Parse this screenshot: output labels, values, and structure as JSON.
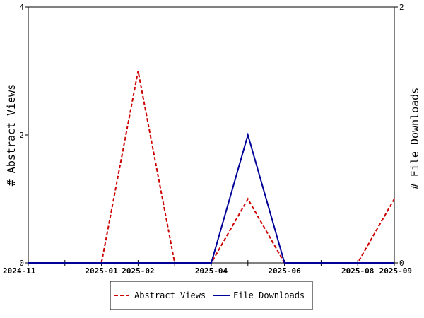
{
  "chart_data": {
    "type": "line",
    "x": [
      "2024-11",
      "2024-12",
      "2025-01",
      "2025-02",
      "2025-03",
      "2025-04",
      "2025-05",
      "2025-06",
      "2025-07",
      "2025-08",
      "2025-09"
    ],
    "x_tick_labels": [
      "2024-11",
      "2025-01",
      "2025-02",
      "2025-04",
      "2025-06",
      "2025-08",
      "2025-09"
    ],
    "y_left": {
      "label": "# Abstract Views",
      "ylim": [
        0,
        4
      ],
      "ticks": [
        0,
        2,
        4
      ]
    },
    "y_right": {
      "label": "# File Downloads",
      "ylim": [
        0,
        2
      ],
      "ticks": [
        0,
        2
      ]
    },
    "series": [
      {
        "name": "Abstract Views",
        "axis": "left",
        "color": "#cc0000",
        "style": "dashed",
        "values": [
          0,
          0,
          0,
          3,
          0,
          0,
          1,
          0,
          0,
          0,
          1
        ]
      },
      {
        "name": "File Downloads",
        "axis": "right",
        "color": "#000099",
        "style": "solid",
        "values": [
          0,
          0,
          0,
          0,
          0,
          0,
          1,
          0,
          0,
          0,
          0
        ]
      }
    ],
    "legend_position": "bottom-center",
    "grid": false
  }
}
